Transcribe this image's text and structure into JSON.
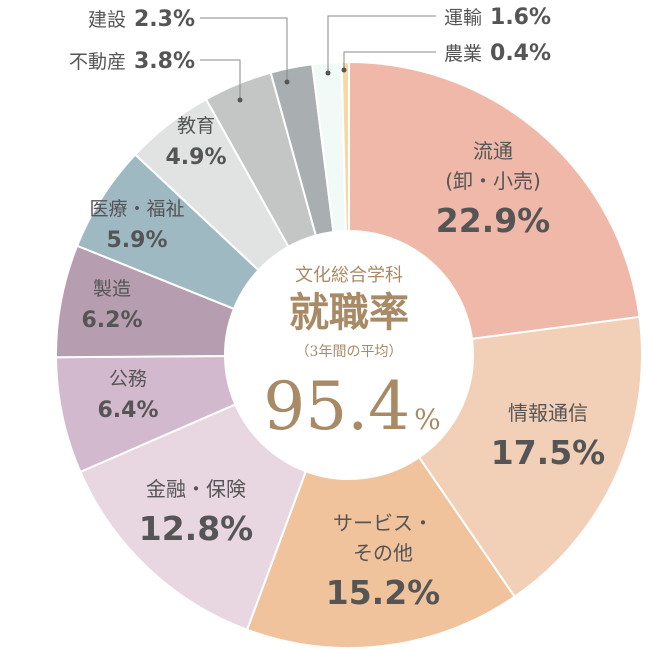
{
  "chart_data": {
    "type": "pie",
    "style": "donut",
    "center": {
      "subtitle": "文化総合学科",
      "title": "就職率",
      "note": "（3年間の平均）",
      "rate": "95.4",
      "unit": "%"
    },
    "slices": [
      {
        "name_lines": [
          "流通",
          "(卸・小売)"
        ],
        "value": 22.9,
        "value_label": "22.9%",
        "color": "#efb8a8"
      },
      {
        "name_lines": [
          "情報通信"
        ],
        "value": 17.5,
        "value_label": "17.5%",
        "color": "#f2cfb7"
      },
      {
        "name_lines": [
          "サービス・",
          "その他"
        ],
        "value": 15.2,
        "value_label": "15.2%",
        "color": "#f0c39d"
      },
      {
        "name_lines": [
          "金融・保険"
        ],
        "value": 12.8,
        "value_label": "12.8%",
        "color": "#e8d6e1"
      },
      {
        "name_lines": [
          "公務"
        ],
        "value": 6.4,
        "value_label": "6.4%",
        "color": "#d3b9cd"
      },
      {
        "name_lines": [
          "製造"
        ],
        "value": 6.2,
        "value_label": "6.2%",
        "color": "#b69eb0"
      },
      {
        "name_lines": [
          "医療・福祉"
        ],
        "value": 5.9,
        "value_label": "5.9%",
        "color": "#9fb9c2"
      },
      {
        "name_lines": [
          "教育"
        ],
        "value": 4.9,
        "value_label": "4.9%",
        "color": "#e1e2e2"
      },
      {
        "name_lines": [
          "不動産"
        ],
        "value": 3.8,
        "value_label": "3.8%",
        "color": "#c4c6c6"
      },
      {
        "name_lines": [
          "建設"
        ],
        "value": 2.3,
        "value_label": "2.3%",
        "color": "#a9aeb0"
      },
      {
        "name_lines": [
          "運輸"
        ],
        "value": 1.6,
        "value_label": "1.6%",
        "color": "#f2faf8"
      },
      {
        "name_lines": [
          "農業"
        ],
        "value": 0.4,
        "value_label": "0.4%",
        "color": "#f4d9a5"
      }
    ]
  }
}
